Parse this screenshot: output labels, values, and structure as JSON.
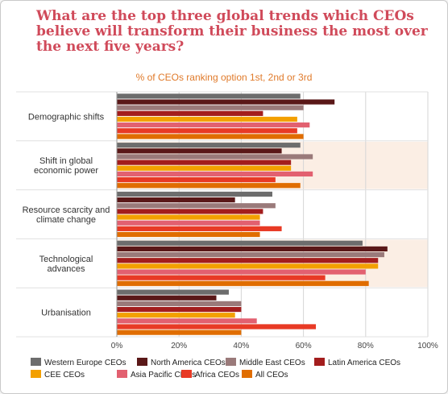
{
  "chart_data": {
    "type": "bar",
    "orientation": "horizontal",
    "title": "What are the top three global trends which CEOs believe will transform their business the most over the next five years?",
    "subtitle": "% of CEOs ranking option 1st, 2nd or 3rd",
    "categories": [
      "Demographic shifts",
      "Shift in global economic power",
      "Resource scarcity and climate change",
      "Technological advances",
      "Urbanisation"
    ],
    "xlim": [
      0,
      100
    ],
    "x_ticks": [
      "0%",
      "20%",
      "40%",
      "60%",
      "80%",
      "100%"
    ],
    "grid": true,
    "legend_position": "bottom",
    "series": [
      {
        "name": "Western Europe CEOs",
        "color": "#6d6d6d",
        "values": [
          59,
          59,
          50,
          79,
          36
        ]
      },
      {
        "name": "North America CEOs",
        "color": "#5a1818",
        "values": [
          70,
          53,
          38,
          87,
          32
        ]
      },
      {
        "name": "Middle East CEOs",
        "color": "#9a7a7a",
        "values": [
          60,
          63,
          51,
          86,
          40
        ]
      },
      {
        "name": "Latin America CEOs",
        "color": "#a31d1d",
        "values": [
          47,
          56,
          47,
          84,
          40
        ]
      },
      {
        "name": "CEE CEOs",
        "color": "#f3a000",
        "values": [
          58,
          56,
          46,
          84,
          38
        ]
      },
      {
        "name": "Asia Pacific CEOs",
        "color": "#e26070",
        "values": [
          62,
          63,
          46,
          80,
          45
        ]
      },
      {
        "name": "Africa CEOs",
        "color": "#e83a25",
        "values": [
          58,
          51,
          53,
          67,
          64
        ]
      },
      {
        "name": "All CEOs",
        "color": "#e06d00",
        "values": [
          60,
          59,
          46,
          81,
          40
        ]
      }
    ]
  },
  "colors": {
    "title": "#d04a5a",
    "subtitle": "#e07a2a",
    "band": "#fbeee4",
    "grid": "#d6d6d6"
  }
}
